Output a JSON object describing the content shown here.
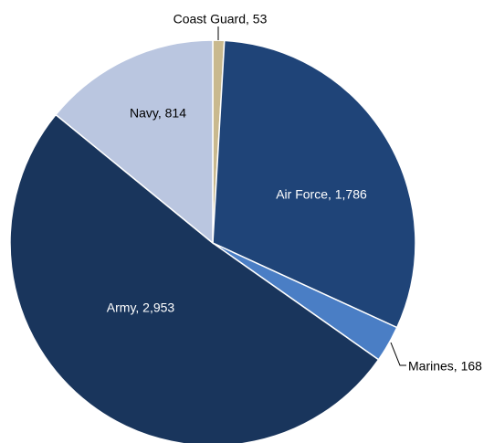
{
  "chart_data": {
    "type": "pie",
    "title": "",
    "start": "12 o'clock",
    "direction": "clockwise",
    "slices": [
      {
        "label": "Coast Guard",
        "value": 53,
        "display": "Coast Guard, 53",
        "color": "#c9b98e",
        "label_position": "outside"
      },
      {
        "label": "Air Force",
        "value": 1786,
        "display": "Air Force, 1,786",
        "color": "#1f4478",
        "label_position": "inside"
      },
      {
        "label": "Marines",
        "value": 168,
        "display": "Marines, 168",
        "color": "#4a7ec5",
        "label_position": "outside"
      },
      {
        "label": "Army",
        "value": 2953,
        "display": "Army, 2,953",
        "color": "#19355c",
        "label_position": "inside"
      },
      {
        "label": "Navy",
        "value": 814,
        "display": "Navy, 814",
        "color": "#bac6e0",
        "label_position": "inside"
      }
    ]
  }
}
